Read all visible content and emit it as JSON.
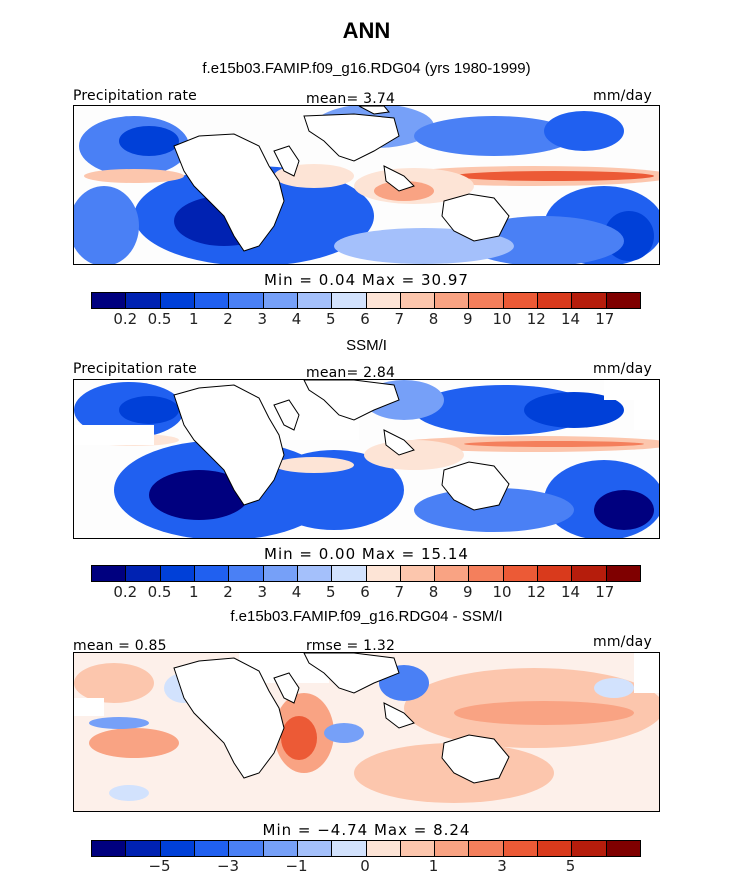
{
  "title": "ANN",
  "colors": [
    "#00007f",
    "#0022b2",
    "#0040d8",
    "#2060f0",
    "#4a80f5",
    "#76a0f8",
    "#a4c0fb",
    "#d2e2fd",
    "#fde4d6",
    "#fcc6ad",
    "#f9a383",
    "#f47f5c",
    "#ec5a36",
    "#d93a1c",
    "#b61d0c",
    "#7f0000"
  ],
  "panels": [
    {
      "subtitle": "f.e15b03.FAMIP.f09_g16.RDG04 (yrs 1980-1999)",
      "left_label": "Precipitation rate",
      "center_label": "mean=    3.74",
      "right_label": "mm/day",
      "stats": "Min =    0.04  Max =   30.97",
      "tick_labels": [
        "0.2",
        "0.5",
        "1",
        "2",
        "3",
        "4",
        "5",
        "6",
        "7",
        "8",
        "9",
        "10",
        "12",
        "14",
        "17"
      ]
    },
    {
      "subtitle": "SSM/I",
      "left_label": "Precipitation rate",
      "center_label": "mean=    2.84",
      "right_label": "mm/day",
      "stats": "Min =    0.00  Max =   15.14",
      "tick_labels": [
        "0.2",
        "0.5",
        "1",
        "2",
        "3",
        "4",
        "5",
        "6",
        "7",
        "8",
        "9",
        "10",
        "12",
        "14",
        "17"
      ]
    },
    {
      "subtitle": "f.e15b03.FAMIP.f09_g16.RDG04 - SSM/I",
      "left_label": "mean =    0.85",
      "center_label": "rmse =    1.32",
      "right_label": "mm/day",
      "stats": "Min =  −4.74  Max =    8.24",
      "tick_labels": [
        "−5",
        "−3",
        "−1",
        "0",
        "1",
        "3",
        "5"
      ]
    }
  ]
}
